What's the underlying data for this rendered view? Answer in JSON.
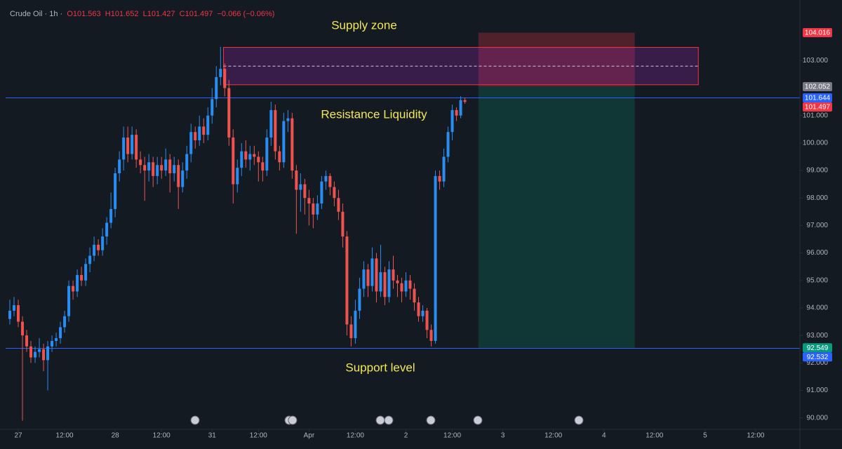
{
  "chart_data": {
    "type": "candlestick",
    "header": {
      "symbol": "Crude Oil · 1h ·",
      "open": "O101.563",
      "high": "H101.652",
      "low": "L101.427",
      "close": "C101.497",
      "change": "−0.066 (−0.06%)"
    },
    "x": [
      -2,
      -1,
      0,
      1,
      2,
      3,
      4,
      5,
      6,
      7,
      8,
      9,
      10,
      11,
      12,
      13,
      14,
      15,
      16,
      17,
      18,
      19,
      20,
      21,
      22,
      23,
      24,
      25,
      26,
      27,
      28,
      29,
      30,
      31,
      32,
      33,
      34,
      35,
      36,
      37,
      38,
      39,
      40,
      41,
      42,
      43,
      44,
      45,
      46,
      47,
      48,
      49,
      50,
      51,
      52,
      53,
      54,
      55,
      56,
      57,
      58,
      59,
      60,
      61,
      62,
      63,
      64,
      65,
      66,
      67,
      68,
      69,
      70,
      71,
      72,
      73,
      74,
      75,
      76,
      77,
      78,
      79,
      80,
      81,
      82,
      83,
      84,
      85,
      86,
      87,
      88,
      89,
      90,
      91,
      92,
      93,
      94,
      95,
      96,
      97,
      98,
      99,
      100,
      101,
      102,
      103,
      104,
      105,
      106
    ],
    "candles": [
      [
        93.6,
        94.3,
        93.4,
        93.9
      ],
      [
        93.9,
        94.4,
        93.7,
        94.1
      ],
      [
        94.1,
        94.3,
        93.3,
        93.5
      ],
      [
        93.5,
        93.7,
        89.9,
        93.0
      ],
      [
        93.0,
        93.2,
        92.4,
        92.6
      ],
      [
        92.6,
        92.8,
        92.0,
        92.2
      ],
      [
        92.2,
        92.6,
        92.0,
        92.4
      ],
      [
        92.4,
        92.9,
        92.2,
        92.5
      ],
      [
        92.5,
        92.7,
        91.7,
        92.1
      ],
      [
        92.1,
        92.8,
        91.0,
        92.6
      ],
      [
        92.6,
        93.0,
        92.4,
        92.8
      ],
      [
        92.8,
        93.1,
        92.6,
        92.9
      ],
      [
        92.9,
        93.5,
        92.7,
        93.3
      ],
      [
        93.3,
        93.9,
        93.1,
        93.7
      ],
      [
        93.7,
        95.0,
        93.5,
        94.8
      ],
      [
        94.8,
        95.0,
        94.3,
        94.6
      ],
      [
        94.6,
        95.4,
        94.4,
        95.2
      ],
      [
        95.2,
        95.5,
        94.8,
        95.0
      ],
      [
        95.0,
        95.8,
        94.8,
        95.6
      ],
      [
        95.6,
        96.2,
        95.3,
        95.9
      ],
      [
        95.9,
        96.6,
        95.7,
        96.3
      ],
      [
        96.3,
        96.5,
        95.9,
        96.1
      ],
      [
        96.1,
        96.9,
        95.9,
        96.6
      ],
      [
        96.6,
        97.3,
        96.3,
        97.1
      ],
      [
        97.1,
        98.2,
        96.9,
        97.6
      ],
      [
        97.6,
        99.1,
        97.3,
        98.9
      ],
      [
        98.9,
        99.7,
        98.6,
        99.4
      ],
      [
        99.4,
        100.6,
        99.0,
        100.2
      ],
      [
        100.2,
        100.6,
        99.3,
        99.6
      ],
      [
        99.6,
        100.6,
        99.4,
        100.3
      ],
      [
        100.3,
        100.5,
        99.1,
        99.4
      ],
      [
        99.4,
        99.7,
        98.9,
        99.2
      ],
      [
        99.2,
        99.5,
        97.9,
        99.0
      ],
      [
        99.0,
        99.6,
        98.6,
        99.3
      ],
      [
        99.3,
        99.5,
        98.4,
        98.8
      ],
      [
        98.8,
        99.5,
        98.5,
        99.2
      ],
      [
        99.2,
        99.5,
        98.7,
        99.0
      ],
      [
        99.0,
        99.8,
        98.8,
        99.4
      ],
      [
        99.4,
        99.6,
        98.2,
        98.9
      ],
      [
        98.9,
        99.5,
        98.6,
        99.2
      ],
      [
        99.2,
        99.4,
        97.6,
        98.4
      ],
      [
        98.4,
        99.3,
        98.2,
        99.0
      ],
      [
        99.0,
        99.9,
        98.7,
        99.6
      ],
      [
        99.6,
        100.7,
        99.3,
        100.4
      ],
      [
        100.4,
        100.6,
        99.8,
        100.1
      ],
      [
        100.1,
        101.0,
        99.9,
        100.6
      ],
      [
        100.6,
        100.9,
        100.0,
        100.3
      ],
      [
        100.3,
        101.3,
        100.1,
        101.0
      ],
      [
        101.0,
        102.0,
        100.7,
        101.6
      ],
      [
        101.6,
        102.8,
        101.3,
        102.4
      ],
      [
        102.4,
        103.5,
        102.1,
        102.7
      ],
      [
        102.7,
        102.9,
        101.7,
        102.0
      ],
      [
        102.0,
        102.3,
        99.9,
        100.2
      ],
      [
        100.2,
        100.5,
        97.8,
        98.5
      ],
      [
        98.5,
        99.4,
        98.2,
        99.1
      ],
      [
        99.1,
        100.0,
        98.8,
        99.7
      ],
      [
        99.7,
        100.1,
        99.1,
        99.4
      ],
      [
        99.4,
        99.9,
        99.0,
        99.6
      ],
      [
        99.6,
        99.9,
        99.2,
        99.5
      ],
      [
        99.5,
        99.7,
        98.6,
        99.3
      ],
      [
        99.3,
        99.5,
        98.6,
        99.0
      ],
      [
        99.0,
        100.5,
        98.8,
        100.2
      ],
      [
        100.2,
        101.5,
        99.9,
        101.2
      ],
      [
        101.2,
        101.4,
        99.4,
        99.7
      ],
      [
        99.7,
        99.9,
        99.0,
        99.3
      ],
      [
        99.3,
        101.1,
        99.1,
        100.8
      ],
      [
        100.8,
        101.2,
        100.4,
        100.9
      ],
      [
        100.9,
        101.1,
        98.7,
        99.0
      ],
      [
        99.0,
        99.2,
        96.7,
        98.3
      ],
      [
        98.3,
        98.9,
        97.5,
        98.5
      ],
      [
        98.5,
        98.7,
        97.4,
        98.0
      ],
      [
        98.0,
        98.3,
        97.0,
        97.8
      ],
      [
        97.8,
        98.0,
        96.9,
        97.4
      ],
      [
        97.4,
        98.1,
        97.2,
        97.8
      ],
      [
        97.8,
        98.8,
        97.6,
        98.6
      ],
      [
        98.6,
        99.0,
        98.3,
        98.8
      ],
      [
        98.8,
        98.9,
        98.1,
        98.4
      ],
      [
        98.4,
        98.6,
        97.7,
        98.0
      ],
      [
        98.0,
        98.3,
        97.2,
        97.5
      ],
      [
        97.5,
        97.8,
        96.2,
        96.6
      ],
      [
        96.6,
        96.8,
        93.0,
        93.4
      ],
      [
        93.4,
        93.7,
        92.6,
        92.9
      ],
      [
        92.9,
        94.3,
        92.7,
        93.9
      ],
      [
        93.9,
        95.1,
        93.6,
        94.7
      ],
      [
        94.7,
        95.7,
        94.4,
        95.4
      ],
      [
        95.4,
        95.6,
        94.4,
        94.8
      ],
      [
        94.8,
        96.2,
        94.6,
        95.8
      ],
      [
        95.8,
        96.0,
        94.2,
        94.6
      ],
      [
        94.6,
        96.3,
        94.4,
        95.3
      ],
      [
        95.3,
        95.5,
        94.1,
        94.4
      ],
      [
        94.4,
        95.7,
        94.2,
        95.4
      ],
      [
        95.4,
        95.9,
        94.7,
        95.0
      ],
      [
        95.0,
        95.2,
        94.4,
        94.9
      ],
      [
        94.9,
        95.1,
        94.2,
        94.6
      ],
      [
        94.6,
        95.3,
        94.4,
        95.0
      ],
      [
        95.0,
        95.2,
        94.3,
        94.7
      ],
      [
        94.7,
        94.9,
        93.9,
        94.2
      ],
      [
        94.2,
        94.4,
        93.5,
        93.7
      ],
      [
        93.7,
        94.1,
        93.5,
        93.9
      ],
      [
        93.9,
        94.0,
        92.9,
        93.2
      ],
      [
        93.2,
        93.4,
        92.6,
        92.8
      ],
      [
        92.8,
        99.0,
        92.7,
        98.8
      ],
      [
        98.8,
        99.0,
        98.3,
        98.6
      ],
      [
        98.6,
        99.8,
        98.4,
        99.5
      ],
      [
        99.5,
        100.6,
        99.3,
        100.4
      ],
      [
        100.4,
        101.4,
        100.1,
        101.2
      ],
      [
        101.2,
        101.3,
        100.8,
        101.0
      ],
      [
        101.0,
        101.7,
        100.9,
        101.563
      ],
      [
        101.563,
        101.652,
        101.427,
        101.497
      ]
    ],
    "up_color": "#2a8df2",
    "down_color": "#ef5350",
    "xlim": [
      -3,
      185.5
    ],
    "ylim": [
      89.8,
      105
    ],
    "yticks": [
      {
        "value": 90,
        "label": "90.000"
      },
      {
        "value": 91,
        "label": "91.000"
      },
      {
        "value": 92,
        "label": "92.000"
      },
      {
        "value": 93,
        "label": "93.000"
      },
      {
        "value": 94,
        "label": "94.000"
      },
      {
        "value": 95,
        "label": "95.000"
      },
      {
        "value": 96,
        "label": "96.000"
      },
      {
        "value": 97,
        "label": "97.000"
      },
      {
        "value": 98,
        "label": "98.000"
      },
      {
        "value": 99,
        "label": "99.000"
      },
      {
        "value": 100,
        "label": "100.000"
      },
      {
        "value": 101,
        "label": "101.000"
      },
      {
        "value": 103,
        "label": "103.000"
      }
    ],
    "xticks": [
      {
        "value": 0,
        "label": "27"
      },
      {
        "value": 11,
        "label": "12:00"
      },
      {
        "value": 23,
        "label": "28"
      },
      {
        "value": 34,
        "label": "12:00"
      },
      {
        "value": 46,
        "label": "31"
      },
      {
        "value": 57,
        "label": "12:00"
      },
      {
        "value": 69,
        "label": "Apr"
      },
      {
        "value": 80,
        "label": "12:00"
      },
      {
        "value": 92,
        "label": "2"
      },
      {
        "value": 103,
        "label": "12:00"
      },
      {
        "value": 115,
        "label": "3"
      },
      {
        "value": 127,
        "label": "12:00"
      },
      {
        "value": 139,
        "label": "4"
      },
      {
        "value": 151,
        "label": "12:00"
      },
      {
        "value": 163,
        "label": "5"
      },
      {
        "value": 175,
        "label": "12:00"
      }
    ],
    "horizontal_lines": [
      101.644,
      92.532
    ],
    "line_color": "#2962ff",
    "price_labels": [
      {
        "value": 104.016,
        "color": "#f23645"
      },
      {
        "value": 102.052,
        "color": "#787b86"
      },
      {
        "value": 101.644,
        "color": "#2962ff"
      },
      {
        "value": 101.497,
        "color": "#f23645"
      },
      {
        "value": 92.549,
        "color": "#089981"
      },
      {
        "value": 92.532,
        "color": "#2962ff"
      }
    ],
    "supply_zone": {
      "x": [
        48.7,
        161.4
      ],
      "y": [
        102.12,
        103.48
      ],
      "mid": 102.8
    },
    "position": {
      "x": [
        109.2,
        146.3
      ],
      "stop": 104.016,
      "entry": 102.052,
      "target": 92.549
    },
    "annotations": [
      "Supply zone",
      "Resistance Liquidity",
      "Support level"
    ]
  }
}
